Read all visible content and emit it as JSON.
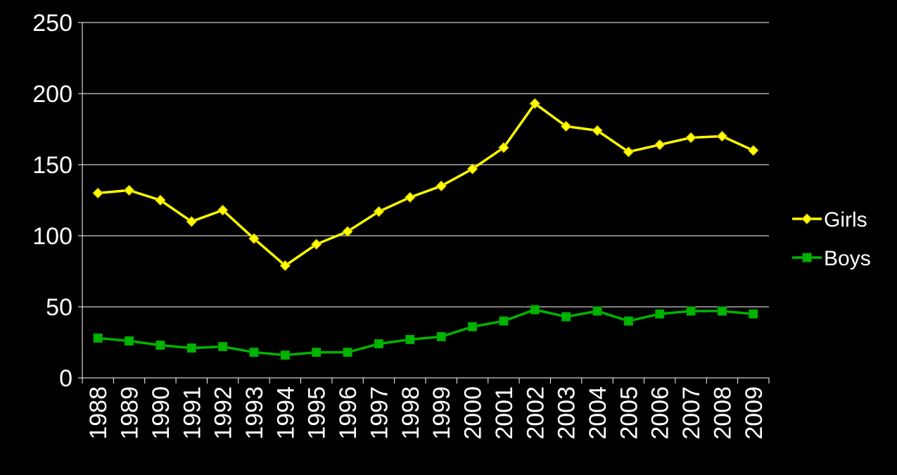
{
  "chart_data": {
    "type": "line",
    "title": "",
    "xlabel": "",
    "ylabel": "",
    "categories": [
      "1988",
      "1989",
      "1990",
      "1991",
      "1992",
      "1993",
      "1994",
      "1995",
      "1996",
      "1997",
      "1998",
      "1999",
      "2000",
      "2001",
      "2002",
      "2003",
      "2004",
      "2005",
      "2006",
      "2007",
      "2008",
      "2009"
    ],
    "ylim": [
      0,
      250
    ],
    "yticks": [
      0,
      50,
      100,
      150,
      200,
      250
    ],
    "grid": true,
    "legend_position": "right",
    "series": [
      {
        "name": "Girls",
        "color": "#ffff00",
        "marker": "diamond",
        "values": [
          130,
          132,
          125,
          110,
          118,
          98,
          79,
          94,
          103,
          117,
          127,
          135,
          147,
          162,
          193,
          177,
          174,
          159,
          164,
          169,
          170,
          160
        ]
      },
      {
        "name": "Boys",
        "color": "#00b400",
        "marker": "square",
        "values": [
          28,
          26,
          23,
          21,
          22,
          18,
          16,
          18,
          18,
          24,
          27,
          29,
          36,
          40,
          48,
          43,
          47,
          40,
          45,
          47,
          47,
          45
        ]
      }
    ]
  }
}
